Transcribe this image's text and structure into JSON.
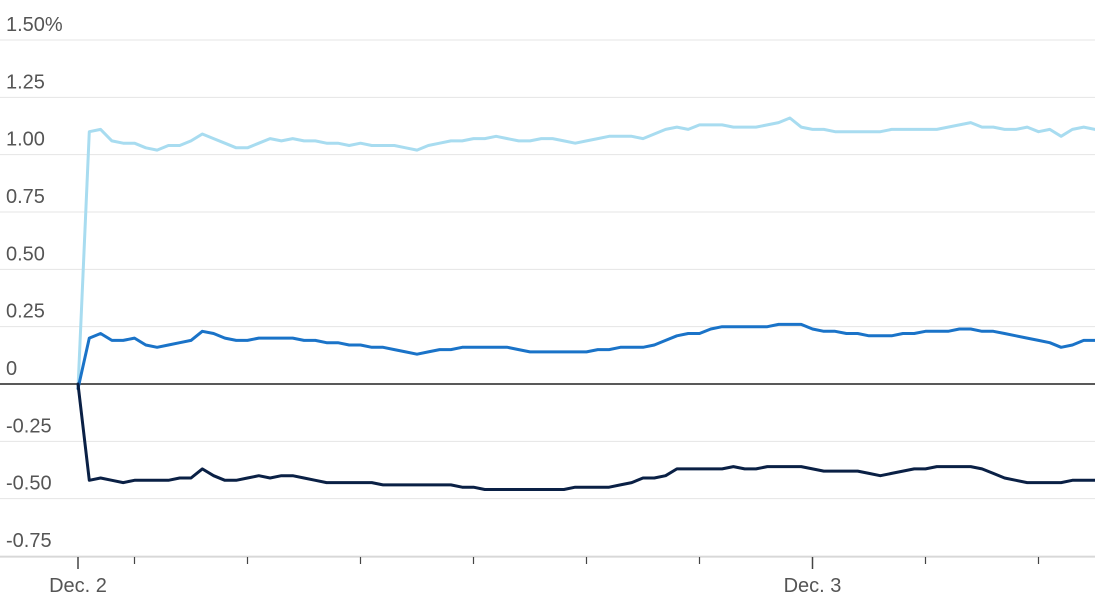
{
  "chart_data": {
    "type": "line",
    "title": "",
    "xlabel": "",
    "ylabel": "",
    "ylim": [
      -0.75,
      1.5
    ],
    "y_ticks": [
      {
        "value": 1.5,
        "label": "1.50%"
      },
      {
        "value": 1.25,
        "label": "1.25"
      },
      {
        "value": 1.0,
        "label": "1.00"
      },
      {
        "value": 0.75,
        "label": "0.75"
      },
      {
        "value": 0.5,
        "label": "0.50"
      },
      {
        "value": 0.25,
        "label": "0.25"
      },
      {
        "value": 0,
        "label": "0"
      },
      {
        "value": -0.25,
        "label": "-0.25"
      },
      {
        "value": -0.5,
        "label": "-0.50"
      },
      {
        "value": -0.75,
        "label": "-0.75"
      }
    ],
    "x_labels": [
      {
        "index": 0,
        "label": "Dec. 2"
      },
      {
        "index": 65,
        "label": "Dec. 3"
      }
    ],
    "x_minor_ticks": [
      5,
      15,
      25,
      35,
      45,
      55,
      75,
      85
    ],
    "x_count": 91,
    "grid": true,
    "colors": {
      "light": "#a8dcf0",
      "mid": "#1a73c8",
      "dark": "#0a2045",
      "zero_line": "#222222",
      "grid": "#e4e4e4"
    },
    "series": [
      {
        "key": "light",
        "color": "#a8dcf0",
        "values": [
          -0.02,
          1.1,
          1.11,
          1.06,
          1.05,
          1.05,
          1.03,
          1.02,
          1.04,
          1.04,
          1.06,
          1.09,
          1.07,
          1.05,
          1.03,
          1.03,
          1.05,
          1.07,
          1.06,
          1.07,
          1.06,
          1.06,
          1.05,
          1.05,
          1.04,
          1.05,
          1.04,
          1.04,
          1.04,
          1.03,
          1.02,
          1.04,
          1.05,
          1.06,
          1.06,
          1.07,
          1.07,
          1.08,
          1.07,
          1.06,
          1.06,
          1.07,
          1.07,
          1.06,
          1.05,
          1.06,
          1.07,
          1.08,
          1.08,
          1.08,
          1.07,
          1.09,
          1.11,
          1.12,
          1.11,
          1.13,
          1.13,
          1.13,
          1.12,
          1.12,
          1.12,
          1.13,
          1.14,
          1.16,
          1.12,
          1.11,
          1.11,
          1.1,
          1.1,
          1.1,
          1.1,
          1.1,
          1.11,
          1.11,
          1.11,
          1.11,
          1.11,
          1.12,
          1.13,
          1.14,
          1.12,
          1.12,
          1.11,
          1.11,
          1.12,
          1.1,
          1.11,
          1.08,
          1.11,
          1.12,
          1.11
        ]
      },
      {
        "key": "mid",
        "color": "#1a73c8",
        "values": [
          -0.02,
          0.2,
          0.22,
          0.19,
          0.19,
          0.2,
          0.17,
          0.16,
          0.17,
          0.18,
          0.19,
          0.23,
          0.22,
          0.2,
          0.19,
          0.19,
          0.2,
          0.2,
          0.2,
          0.2,
          0.19,
          0.19,
          0.18,
          0.18,
          0.17,
          0.17,
          0.16,
          0.16,
          0.15,
          0.14,
          0.13,
          0.14,
          0.15,
          0.15,
          0.16,
          0.16,
          0.16,
          0.16,
          0.16,
          0.15,
          0.14,
          0.14,
          0.14,
          0.14,
          0.14,
          0.14,
          0.15,
          0.15,
          0.16,
          0.16,
          0.16,
          0.17,
          0.19,
          0.21,
          0.22,
          0.22,
          0.24,
          0.25,
          0.25,
          0.25,
          0.25,
          0.25,
          0.26,
          0.26,
          0.26,
          0.24,
          0.23,
          0.23,
          0.22,
          0.22,
          0.21,
          0.21,
          0.21,
          0.22,
          0.22,
          0.23,
          0.23,
          0.23,
          0.24,
          0.24,
          0.23,
          0.23,
          0.22,
          0.21,
          0.2,
          0.19,
          0.18,
          0.16,
          0.17,
          0.19,
          0.19
        ]
      },
      {
        "key": "dark",
        "color": "#0a2045",
        "values": [
          0,
          -0.42,
          -0.41,
          -0.42,
          -0.43,
          -0.42,
          -0.42,
          -0.42,
          -0.42,
          -0.41,
          -0.41,
          -0.37,
          -0.4,
          -0.42,
          -0.42,
          -0.41,
          -0.4,
          -0.41,
          -0.4,
          -0.4,
          -0.41,
          -0.42,
          -0.43,
          -0.43,
          -0.43,
          -0.43,
          -0.43,
          -0.44,
          -0.44,
          -0.44,
          -0.44,
          -0.44,
          -0.44,
          -0.44,
          -0.45,
          -0.45,
          -0.46,
          -0.46,
          -0.46,
          -0.46,
          -0.46,
          -0.46,
          -0.46,
          -0.46,
          -0.45,
          -0.45,
          -0.45,
          -0.45,
          -0.44,
          -0.43,
          -0.41,
          -0.41,
          -0.4,
          -0.37,
          -0.37,
          -0.37,
          -0.37,
          -0.37,
          -0.36,
          -0.37,
          -0.37,
          -0.36,
          -0.36,
          -0.36,
          -0.36,
          -0.37,
          -0.38,
          -0.38,
          -0.38,
          -0.38,
          -0.39,
          -0.4,
          -0.39,
          -0.38,
          -0.37,
          -0.37,
          -0.36,
          -0.36,
          -0.36,
          -0.36,
          -0.37,
          -0.39,
          -0.41,
          -0.42,
          -0.43,
          -0.43,
          -0.43,
          -0.43,
          -0.42,
          -0.42,
          -0.42
        ]
      }
    ]
  }
}
